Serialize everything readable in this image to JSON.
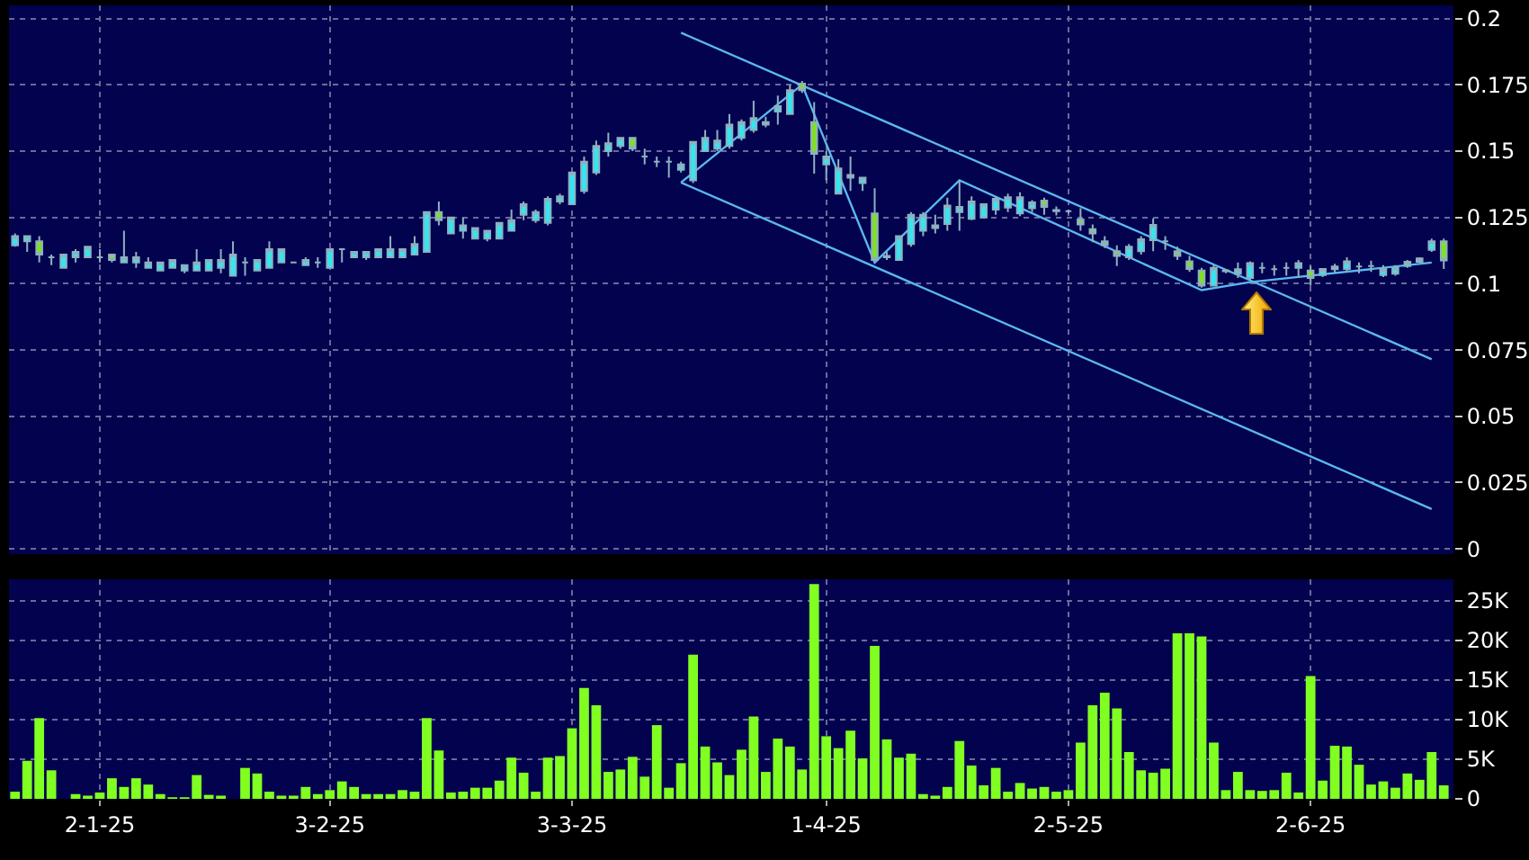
{
  "chart_data": [
    {
      "type": "candlestick",
      "categories": [
        null,
        null,
        null,
        null,
        null,
        null,
        null,
        null,
        null,
        null,
        null,
        null,
        null,
        null,
        null,
        null,
        null,
        null,
        null,
        null,
        null,
        null,
        null,
        null,
        null,
        null,
        null,
        null,
        null,
        null,
        null,
        null,
        null,
        null,
        null,
        null,
        null,
        null,
        null,
        null,
        null,
        null,
        null,
        null,
        null,
        null,
        null,
        null,
        null,
        null,
        null,
        null,
        null,
        null,
        null,
        null,
        null,
        null,
        null,
        null,
        null,
        null,
        null,
        null,
        null,
        null,
        null,
        null,
        null,
        null,
        null,
        null,
        null,
        null,
        null,
        null,
        null,
        null,
        null,
        null,
        null,
        null,
        null,
        null,
        null,
        null,
        null,
        null,
        null,
        null,
        null,
        null,
        null,
        null,
        null,
        null,
        null,
        null,
        null,
        null,
        null,
        null,
        null,
        null,
        null,
        null,
        null,
        null,
        null,
        null,
        null,
        null,
        null,
        null,
        null,
        null,
        null,
        null,
        null
      ],
      "ohlc": [
        [
          0.1145,
          0.119,
          0.114,
          0.118
        ],
        [
          0.116,
          0.118,
          0.112,
          0.118
        ],
        [
          0.116,
          0.118,
          0.108,
          0.111
        ],
        [
          0.11,
          0.111,
          0.107,
          0.11
        ],
        [
          0.106,
          0.111,
          0.106,
          0.111
        ],
        [
          0.11,
          0.113,
          0.108,
          0.112
        ],
        [
          0.11,
          0.114,
          0.11,
          0.114
        ],
        [
          0.11,
          0.113,
          0.108,
          0.11
        ],
        [
          0.111,
          0.111,
          0.108,
          0.109
        ],
        [
          0.108,
          0.12,
          0.108,
          0.11
        ],
        [
          0.108,
          0.112,
          0.106,
          0.11
        ],
        [
          0.106,
          0.11,
          0.106,
          0.108
        ],
        [
          0.105,
          0.108,
          0.105,
          0.108
        ],
        [
          0.106,
          0.109,
          0.106,
          0.109
        ],
        [
          0.105,
          0.107,
          0.104,
          0.107
        ],
        [
          0.105,
          0.113,
          0.105,
          0.108
        ],
        [
          0.105,
          0.109,
          0.105,
          0.109
        ],
        [
          0.106,
          0.113,
          0.104,
          0.109
        ],
        [
          0.103,
          0.116,
          0.103,
          0.111
        ],
        [
          0.108,
          0.11,
          0.103,
          0.108
        ],
        [
          0.105,
          0.109,
          0.105,
          0.109
        ],
        [
          0.106,
          0.116,
          0.106,
          0.113
        ],
        [
          0.108,
          0.113,
          0.108,
          0.113
        ],
        [
          0.108,
          0.108,
          0.108,
          0.108
        ],
        [
          0.107,
          0.11,
          0.107,
          0.109
        ],
        [
          0.108,
          0.11,
          0.106,
          0.108
        ],
        [
          0.106,
          0.113,
          0.106,
          0.113
        ],
        [
          0.113,
          0.113,
          0.108,
          0.113
        ],
        [
          0.11,
          0.112,
          0.11,
          0.112
        ],
        [
          0.11,
          0.112,
          0.109,
          0.112
        ],
        [
          0.11,
          0.113,
          0.11,
          0.113
        ],
        [
          0.11,
          0.118,
          0.11,
          0.113
        ],
        [
          0.11,
          0.113,
          0.11,
          0.113
        ],
        [
          0.111,
          0.118,
          0.111,
          0.115
        ],
        [
          0.112,
          0.127,
          0.112,
          0.127
        ],
        [
          0.127,
          0.131,
          0.122,
          0.124
        ],
        [
          0.119,
          0.125,
          0.119,
          0.125
        ],
        [
          0.12,
          0.125,
          0.117,
          0.122
        ],
        [
          0.117,
          0.121,
          0.117,
          0.121
        ],
        [
          0.117,
          0.12,
          0.116,
          0.12
        ],
        [
          0.117,
          0.123,
          0.117,
          0.123
        ],
        [
          0.12,
          0.128,
          0.12,
          0.124
        ],
        [
          0.126,
          0.131,
          0.124,
          0.13
        ],
        [
          0.124,
          0.128,
          0.123,
          0.127
        ],
        [
          0.123,
          0.133,
          0.122,
          0.132
        ],
        [
          0.131,
          0.134,
          0.13,
          0.133
        ],
        [
          0.13,
          0.142,
          0.13,
          0.142
        ],
        [
          0.135,
          0.148,
          0.134,
          0.146
        ],
        [
          0.142,
          0.154,
          0.141,
          0.152
        ],
        [
          0.15,
          0.157,
          0.148,
          0.153
        ],
        [
          0.152,
          0.155,
          0.151,
          0.155
        ],
        [
          0.155,
          0.155,
          0.15,
          0.151
        ],
        [
          0.148,
          0.151,
          0.145,
          0.148
        ],
        [
          0.146,
          0.148,
          0.144,
          0.146
        ],
        [
          0.146,
          0.148,
          0.14,
          0.146
        ],
        [
          0.143,
          0.146,
          0.142,
          0.145
        ],
        [
          0.139,
          0.1535,
          0.138,
          0.1535
        ],
        [
          0.15,
          0.158,
          0.15,
          0.155
        ],
        [
          0.151,
          0.158,
          0.15,
          0.154
        ],
        [
          0.152,
          0.164,
          0.151,
          0.16
        ],
        [
          0.155,
          0.162,
          0.154,
          0.161
        ],
        [
          0.158,
          0.169,
          0.157,
          0.1625
        ],
        [
          0.16,
          0.163,
          0.159,
          0.161
        ],
        [
          0.165,
          0.171,
          0.16,
          0.167
        ],
        [
          0.164,
          0.175,
          0.164,
          0.173
        ],
        [
          0.1755,
          0.1765,
          0.172,
          0.173
        ],
        [
          0.161,
          0.1685,
          0.1415,
          0.149
        ],
        [
          0.145,
          0.15,
          0.139,
          0.148
        ],
        [
          0.134,
          0.147,
          0.134,
          0.1435
        ],
        [
          0.141,
          0.148,
          0.135,
          0.14
        ],
        [
          0.138,
          0.14,
          0.135,
          0.14
        ],
        [
          0.1265,
          0.136,
          0.1085,
          0.109
        ],
        [
          0.11,
          0.112,
          0.109,
          0.1105
        ],
        [
          0.109,
          0.118,
          0.109,
          0.118
        ],
        [
          0.115,
          0.127,
          0.114,
          0.126
        ],
        [
          0.12,
          0.127,
          0.118,
          0.126
        ],
        [
          0.121,
          0.126,
          0.119,
          0.122
        ],
        [
          0.1225,
          0.1325,
          0.12,
          0.1295
        ],
        [
          0.127,
          0.139,
          0.12,
          0.129
        ],
        [
          0.1245,
          0.133,
          0.124,
          0.131
        ],
        [
          0.125,
          0.13,
          0.125,
          0.13
        ],
        [
          0.128,
          0.133,
          0.126,
          0.132
        ],
        [
          0.1287,
          0.134,
          0.127,
          0.1326
        ],
        [
          0.1265,
          0.1345,
          0.1255,
          0.1326
        ],
        [
          0.1285,
          0.1315,
          0.127,
          0.1307
        ],
        [
          0.1314,
          0.1325,
          0.126,
          0.129
        ],
        [
          0.1274,
          0.1292,
          0.1258,
          0.1278
        ],
        [
          0.1274,
          0.128,
          0.1265,
          0.1274
        ],
        [
          0.1242,
          0.1285,
          0.12,
          0.1224
        ],
        [
          0.1206,
          0.1224,
          0.1157,
          0.119
        ],
        [
          0.116,
          0.118,
          0.1135,
          0.1146
        ],
        [
          0.1123,
          0.1145,
          0.1067,
          0.1105
        ],
        [
          0.11,
          0.115,
          0.109,
          0.114
        ],
        [
          0.1123,
          0.118,
          0.111,
          0.1168
        ],
        [
          0.1164,
          0.1247,
          0.1123,
          0.1222
        ],
        [
          0.116,
          0.118,
          0.1128,
          0.116
        ],
        [
          0.1123,
          0.114,
          0.109,
          0.1105
        ],
        [
          0.1085,
          0.1105,
          0.1045,
          0.1056
        ],
        [
          0.105,
          0.106,
          0.0985,
          0.0993
        ],
        [
          0.0993,
          0.107,
          0.099,
          0.106
        ],
        [
          0.1047,
          0.1055,
          0.104,
          0.105
        ],
        [
          0.1038,
          0.108,
          0.1022,
          0.1055
        ],
        [
          0.1022,
          0.1085,
          0.1015,
          0.1078
        ],
        [
          0.106,
          0.108,
          0.104,
          0.106
        ],
        [
          0.1055,
          0.107,
          0.103,
          0.1055
        ],
        [
          0.106,
          0.108,
          0.103,
          0.106
        ],
        [
          0.106,
          0.109,
          0.1022,
          0.1078
        ],
        [
          0.105,
          0.1067,
          0.0993,
          0.1022
        ],
        [
          0.1033,
          0.1056,
          0.1025,
          0.1056
        ],
        [
          0.1055,
          0.1075,
          0.104,
          0.1065
        ],
        [
          0.1056,
          0.11,
          0.1045,
          0.1085
        ],
        [
          0.1065,
          0.108,
          0.104,
          0.1065
        ],
        [
          0.1067,
          0.1087,
          0.1045,
          0.1067
        ],
        [
          0.1033,
          0.107,
          0.1025,
          0.1056
        ],
        [
          0.1038,
          0.107,
          0.103,
          0.106
        ],
        [
          0.1067,
          0.109,
          0.106,
          0.1083
        ],
        [
          0.1083,
          0.11,
          0.108,
          0.1096
        ],
        [
          0.1128,
          0.117,
          0.112,
          0.116
        ],
        [
          0.116,
          0.117,
          0.1056,
          0.1088
        ]
      ],
      "series": [
        {
          "type": "line",
          "color": "#5ab8ee",
          "values": [
            null,
            null,
            null,
            null,
            null,
            null,
            null,
            null,
            null,
            null,
            null,
            null,
            null,
            null,
            null,
            null,
            null,
            null,
            null,
            null,
            null,
            null,
            null,
            null,
            null,
            null,
            null,
            null,
            null,
            null,
            null,
            null,
            null,
            null,
            null,
            null,
            null,
            null,
            null,
            null,
            null,
            null,
            null,
            null,
            null,
            null,
            null,
            null,
            null,
            null,
            null,
            null,
            null,
            null,
            null,
            0.1947,
            null,
            null,
            null,
            null,
            null,
            null,
            null,
            null,
            null,
            null,
            null,
            null,
            null,
            null,
            null,
            null,
            null,
            null,
            null,
            null,
            null,
            null,
            null,
            null,
            null,
            null,
            null,
            null,
            null,
            null,
            null,
            null,
            null,
            null,
            null,
            null,
            null,
            null,
            null,
            null,
            null,
            null,
            null,
            null,
            null,
            null,
            null,
            null,
            null,
            null,
            null,
            null,
            null,
            null,
            null,
            null,
            null,
            null,
            null,
            null,
            null,
            0.0715,
            null
          ]
        },
        {
          "type": "line",
          "color": "#5ab8ee",
          "values": [
            null,
            null,
            null,
            null,
            null,
            null,
            null,
            null,
            null,
            null,
            null,
            null,
            null,
            null,
            null,
            null,
            null,
            null,
            null,
            null,
            null,
            null,
            null,
            null,
            null,
            null,
            null,
            null,
            null,
            null,
            null,
            null,
            null,
            null,
            null,
            null,
            null,
            null,
            null,
            null,
            null,
            null,
            null,
            null,
            null,
            null,
            null,
            null,
            null,
            null,
            null,
            null,
            null,
            null,
            null,
            0.1382,
            null,
            null,
            null,
            null,
            null,
            null,
            null,
            null,
            null,
            null,
            null,
            null,
            null,
            null,
            null,
            null,
            null,
            null,
            null,
            null,
            null,
            null,
            null,
            null,
            null,
            null,
            null,
            null,
            null,
            null,
            null,
            null,
            null,
            null,
            null,
            null,
            null,
            null,
            null,
            null,
            null,
            null,
            null,
            null,
            null,
            null,
            null,
            null,
            null,
            null,
            null,
            null,
            null,
            null,
            null,
            null,
            null,
            null,
            null,
            null,
            null,
            0.015,
            null
          ]
        },
        {
          "type": "line",
          "color": "#5ab8ee",
          "values": [
            null,
            null,
            null,
            null,
            null,
            null,
            null,
            null,
            null,
            null,
            null,
            null,
            null,
            null,
            null,
            null,
            null,
            null,
            null,
            null,
            null,
            null,
            null,
            null,
            null,
            null,
            null,
            null,
            null,
            null,
            null,
            null,
            null,
            null,
            null,
            null,
            null,
            null,
            null,
            null,
            null,
            null,
            null,
            null,
            null,
            null,
            null,
            null,
            null,
            null,
            null,
            null,
            null,
            null,
            null,
            0.1382,
            null,
            null,
            null,
            null,
            null,
            null,
            null,
            null,
            null,
            0.1751,
            null,
            null,
            null,
            null,
            null,
            0.108,
            null,
            null,
            null,
            null,
            null,
            null,
            0.139,
            null,
            null,
            null,
            null,
            null,
            null,
            null,
            null,
            null,
            null,
            null,
            null,
            null,
            null,
            null,
            null,
            null,
            null,
            null,
            0.0976,
            null,
            null,
            null,
            0.1006,
            null,
            null,
            null,
            null,
            null,
            null,
            null,
            null,
            null,
            null,
            null,
            null,
            null,
            null,
            0.108,
            null
          ]
        }
      ],
      "ylim": [
        -0.002,
        0.205
      ],
      "yticks": [
        0,
        0.025,
        0.05,
        0.075,
        0.1,
        0.125,
        0.15,
        0.175,
        0.2
      ],
      "grid": true,
      "tick_labels": "y"
    },
    {
      "type": "bar",
      "categories": [
        null,
        null,
        null,
        null,
        null,
        null,
        null,
        "2-1-25",
        null,
        null,
        null,
        null,
        null,
        null,
        null,
        null,
        null,
        null,
        null,
        null,
        null,
        null,
        null,
        null,
        null,
        null,
        "3-2-25",
        null,
        null,
        null,
        null,
        null,
        null,
        null,
        null,
        null,
        null,
        null,
        null,
        null,
        null,
        null,
        null,
        null,
        null,
        null,
        "3-3-25",
        null,
        null,
        null,
        null,
        null,
        null,
        null,
        null,
        null,
        null,
        null,
        null,
        null,
        null,
        null,
        null,
        null,
        null,
        null,
        null,
        "1-4-25",
        null,
        null,
        null,
        null,
        null,
        null,
        null,
        null,
        null,
        null,
        null,
        null,
        null,
        null,
        null,
        null,
        null,
        null,
        null,
        "2-5-25",
        null,
        null,
        null,
        null,
        null,
        null,
        null,
        null,
        null,
        null,
        null,
        null,
        null,
        null,
        null,
        null,
        null,
        null,
        null,
        "2-6-25",
        null,
        null,
        null,
        null,
        null,
        null,
        null,
        null,
        null,
        null,
        null
      ],
      "values": [
        900,
        4800,
        10200,
        3600,
        0,
        600,
        400,
        800,
        2600,
        1500,
        2600,
        1800,
        600,
        200,
        200,
        3000,
        500,
        400,
        0,
        3900,
        3200,
        900,
        400,
        400,
        1500,
        600,
        1100,
        2200,
        1500,
        600,
        600,
        600,
        1100,
        900,
        10200,
        6100,
        800,
        900,
        1400,
        1400,
        2300,
        5200,
        3300,
        900,
        5200,
        5400,
        8900,
        14000,
        11800,
        3400,
        3700,
        5300,
        2800,
        9300,
        1400,
        4500,
        18200,
        6600,
        4600,
        3000,
        6200,
        10400,
        3400,
        7600,
        6600,
        3700,
        27100,
        7900,
        6400,
        8600,
        5100,
        19300,
        7500,
        5200,
        5700,
        600,
        400,
        1500,
        7300,
        4200,
        1700,
        3900,
        900,
        2000,
        1300,
        1500,
        900,
        1100,
        7100,
        11800,
        13400,
        11400,
        5900,
        3600,
        3300,
        3800,
        20900,
        20900,
        20500,
        7100,
        1100,
        3400,
        1100,
        1000,
        1100,
        3300,
        800,
        15500,
        2300,
        6700,
        6600,
        4300,
        1800,
        2200,
        1400,
        3200,
        2400,
        5900,
        1700
      ],
      "color": "#80ff20",
      "ylim": [
        0,
        27700
      ],
      "yticks": [
        0,
        {
          "value": 5000,
          "label": "5K"
        },
        {
          "value": 10000,
          "label": "10K"
        },
        {
          "value": 15000,
          "label": "15K"
        },
        {
          "value": 20000,
          "label": "20K"
        },
        {
          "value": 25000,
          "label": "25K"
        }
      ],
      "grid": true
    }
  ]
}
